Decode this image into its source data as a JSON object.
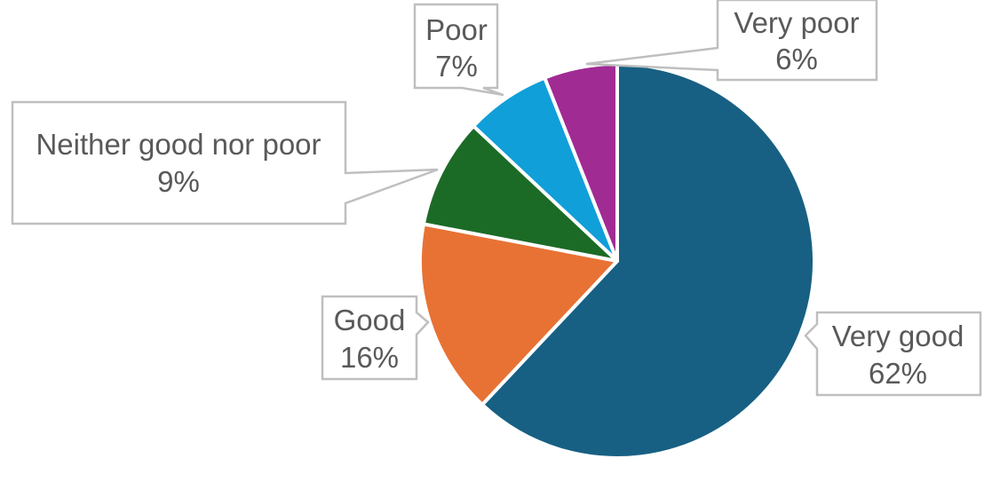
{
  "chart_data": {
    "type": "pie",
    "title": "",
    "categories": [
      "Very good",
      "Good",
      "Neither good nor poor",
      "Poor",
      "Very poor"
    ],
    "values": [
      62,
      16,
      9,
      7,
      6
    ],
    "unit": "%",
    "colors": [
      "#176083",
      "#E87234",
      "#1B6B26",
      "#109FD8",
      "#A02B93"
    ],
    "start_angle_deg": 0,
    "direction": "clockwise",
    "labels": [
      {
        "name": "Very good",
        "value": "62%"
      },
      {
        "name": "Good",
        "value": "16%"
      },
      {
        "name": "Neither good nor poor",
        "value": "9%"
      },
      {
        "name": "Poor",
        "value": "7%"
      },
      {
        "name": "Very poor",
        "value": "6%"
      }
    ],
    "legend": "none (data callouts)"
  }
}
